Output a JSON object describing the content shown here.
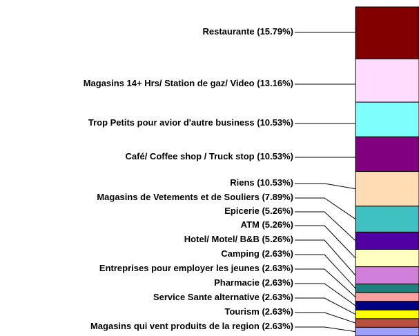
{
  "chart_data": {
    "type": "stacked-bar",
    "categories": [
      "Restaurante",
      "Magasins 14+ Hrs/ Station de gaz/ Video",
      "Trop Petits pour avior d'autre business",
      "Café/ Coffee shop / Truck stop",
      "Riens",
      "Magasins de Vetements et de Souliers",
      "Epicerie",
      "ATM",
      "Hotel/ Motel/ B&B",
      "Camping",
      "Entreprises pour employer les jeunes",
      "Pharmacie",
      "Service Sante alternative",
      "Tourism",
      "Magasins qui vent produits de la region"
    ],
    "values": [
      15.79,
      13.16,
      10.53,
      10.53,
      10.53,
      7.89,
      5.26,
      5.26,
      5.26,
      2.63,
      2.63,
      2.63,
      2.63,
      2.63,
      2.63
    ],
    "value_labels": [
      "(15.79%)",
      "(13.16%)",
      "(10.53%)",
      "(10.53%)",
      "(10.53%)",
      "(7.89%)",
      "(5.26%)",
      "(5.26%)",
      "(5.26%)",
      "(2.63%)",
      "(2.63%)",
      "(2.63%)",
      "(2.63%)",
      "(2.63%)",
      "(2.63%)"
    ],
    "colors": [
      "#800000",
      "#ffdcff",
      "#80ffff",
      "#800080",
      "#ffdcb4",
      "#40c0c0",
      "#5000a0",
      "#ffffc0",
      "#d080d8",
      "#208080",
      "#ffa0a0",
      "#000080",
      "#ffff00",
      "#b85040",
      "#a0a0ff"
    ],
    "ylim": [
      0,
      100
    ]
  }
}
